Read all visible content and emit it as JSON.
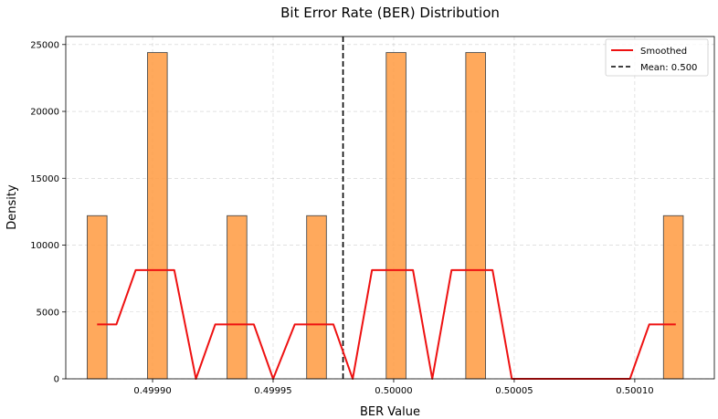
{
  "chart_data": {
    "type": "bar",
    "title": "Bit Error Rate (BER) Distribution",
    "xlabel": "BER Value",
    "ylabel": "Density",
    "xlim": [
      0.499864,
      0.500133
    ],
    "ylim": [
      0,
      25600
    ],
    "grid": true,
    "x_ticks": [
      0.4999,
      0.49995,
      0.5,
      0.50005,
      0.5001
    ],
    "x_tick_labels": [
      "0.49990",
      "0.49995",
      "0.50000",
      "0.50005",
      "0.50010"
    ],
    "y_ticks": [
      0,
      5000,
      10000,
      15000,
      20000,
      25000
    ],
    "y_tick_labels": [
      "0",
      "5000",
      "10000",
      "15000",
      "20000",
      "25000"
    ],
    "bar_width": 8.2e-06,
    "bar_color": "#ff9a40",
    "bar_edge_color": "#4d4d4d",
    "bars": [
      {
        "x": 0.499877,
        "value": 12200
      },
      {
        "x": 0.499902,
        "value": 24400
      },
      {
        "x": 0.499935,
        "value": 12200
      },
      {
        "x": 0.499968,
        "value": 12200
      },
      {
        "x": 0.500001,
        "value": 24400
      },
      {
        "x": 0.500034,
        "value": 24400
      },
      {
        "x": 0.500116,
        "value": 12200
      }
    ],
    "series": [
      {
        "name": "Smoothed",
        "type": "line",
        "color": "#ee1111",
        "x": [
          0.499877,
          0.499885,
          0.499893,
          0.499901,
          0.499909,
          0.499918,
          0.499926,
          0.499934,
          0.499942,
          0.49995,
          0.499959,
          0.499967,
          0.499975,
          0.499983,
          0.499991,
          0.5,
          0.500008,
          0.500016,
          0.500024,
          0.500032,
          0.500041,
          0.500049,
          0.500057,
          0.500065,
          0.500073,
          0.500082,
          0.50009,
          0.500098,
          0.500106,
          0.500114,
          0.500117
        ],
        "y": [
          4067,
          4067,
          8133,
          8133,
          8133,
          0,
          4067,
          4067,
          4067,
          0,
          4067,
          4067,
          4067,
          0,
          8133,
          8133,
          8133,
          0,
          8133,
          8133,
          8133,
          0,
          0,
          0,
          0,
          0,
          0,
          0,
          4067,
          4067,
          4067
        ]
      }
    ],
    "mean_line": {
      "name": "Mean: 0.500",
      "x": 0.499979,
      "color": "#000000"
    },
    "legend_position": "top-right",
    "legend": [
      {
        "label": "Smoothed",
        "style": "solid",
        "color": "#ee1111"
      },
      {
        "label": "Mean: 0.500",
        "style": "dashed",
        "color": "#000000"
      }
    ]
  }
}
